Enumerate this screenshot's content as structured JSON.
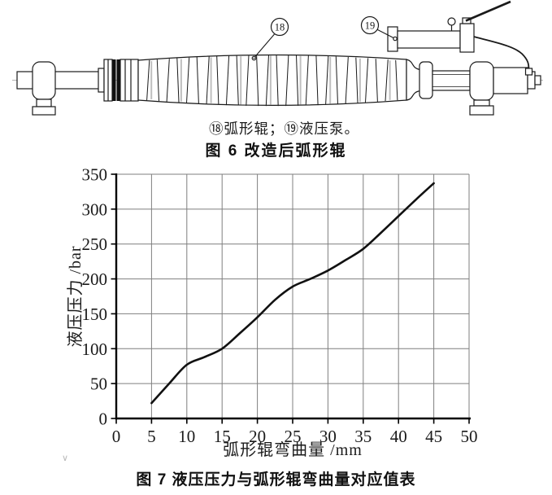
{
  "page": {
    "background": "#ffffff"
  },
  "figure6": {
    "callouts": {
      "roller": "18",
      "pump": "19"
    },
    "legend": "⑱弧形辊；⑲液压泵。",
    "caption": "图 6 改造后弧形辊"
  },
  "figure7": {
    "caption": "图 7 液压压力与弧形辊弯曲量对应值表"
  },
  "artifact": {
    "cursor_mark": "∨"
  },
  "chart_data": {
    "type": "line",
    "title": "",
    "xlabel": "弧形辊弯曲量 /mm",
    "ylabel": "液压压力 /bar",
    "xlim": [
      0,
      50
    ],
    "ylim": [
      0,
      350
    ],
    "xticks": [
      0,
      5,
      10,
      15,
      20,
      25,
      30,
      35,
      40,
      45,
      50
    ],
    "yticks": [
      0,
      50,
      100,
      150,
      200,
      250,
      300,
      350
    ],
    "grid": true,
    "legend_position": "none",
    "series": [
      {
        "name": "液压压力与弧形辊弯曲量对应值",
        "x": [
          5,
          7.5,
          10,
          12.5,
          15,
          17.5,
          20,
          22.5,
          25,
          27.5,
          30,
          32.5,
          35,
          37.5,
          40,
          42.5,
          45
        ],
        "y": [
          22,
          50,
          77,
          88,
          100,
          122,
          145,
          170,
          189,
          200,
          212,
          227,
          243,
          266,
          290,
          314,
          337
        ]
      }
    ],
    "colors": {
      "line": "#111111",
      "grid": "#7f7f7f",
      "axis": "#000000"
    }
  }
}
